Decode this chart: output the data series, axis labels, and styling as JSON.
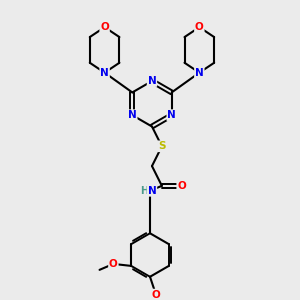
{
  "bg_color": "#ebebeb",
  "atom_colors": {
    "N": "#0000ee",
    "O": "#ff0000",
    "S": "#bbbb00",
    "C": "#000000",
    "H": "#4a9a8a"
  },
  "bond_color": "#000000",
  "figsize": [
    3.0,
    3.0
  ],
  "dpi": 100
}
